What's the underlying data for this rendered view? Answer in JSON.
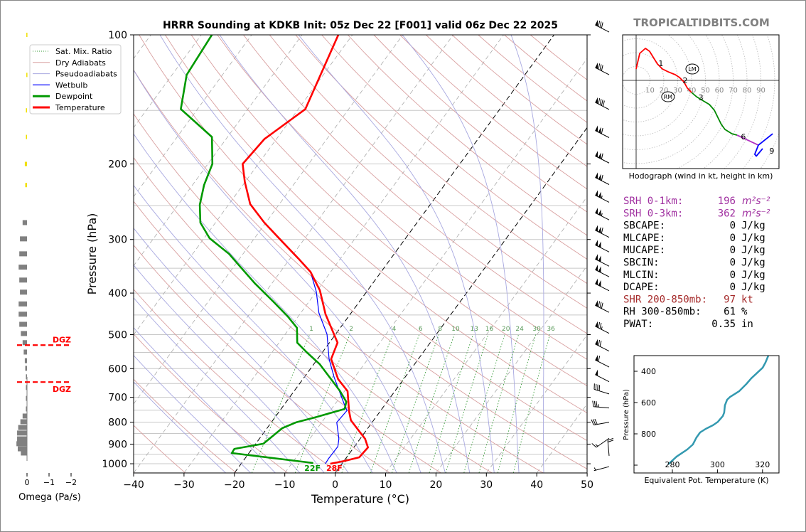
{
  "title": "HRRR Sounding at KDKB Init: 05z Dec 22 [F001] valid 06z Dec 22 2025",
  "watermark": "TROPICALTIDBITS.COM",
  "colors": {
    "temperature": "#ff0000",
    "dewpoint": "#009900",
    "wetbulb": "#0000ff",
    "dry_adiabat": "#d9a0a0",
    "pseudoadiabat": "#a8a8e0",
    "mixing_ratio": "#339933",
    "isotherm": "#aaaaaa",
    "srh": "#a030a0",
    "shr": "#a52a2a",
    "theta_e": "#3399b0",
    "omega_bar": "#808080",
    "omega_upper": "#f0e000",
    "watermark": "#808080"
  },
  "legend": [
    {
      "label": "Sat. Mix. Ratio",
      "style": "mixing"
    },
    {
      "label": "Dry Adiabats",
      "style": "dry"
    },
    {
      "label": "Pseudoadiabats",
      "style": "moist"
    },
    {
      "label": "Wetbulb",
      "style": "wetbulb"
    },
    {
      "label": "Dewpoint",
      "style": "dewpoint"
    },
    {
      "label": "Temperature",
      "style": "temperature"
    }
  ],
  "chart_data": [
    {
      "type": "line",
      "name": "skew-t",
      "xlabel": "Temperature (°C)",
      "ylabel": "Pressure (hPa)",
      "xlim": [
        -40,
        50
      ],
      "ylim": [
        1050,
        100
      ],
      "x_ticks": [
        "−40",
        "−30",
        "−20",
        "−10",
        "0",
        "10",
        "20",
        "30",
        "40",
        "50"
      ],
      "x_tick_values": [
        -40,
        -30,
        -20,
        -10,
        0,
        10,
        20,
        30,
        40,
        50
      ],
      "y_ticks": [
        "100",
        "200",
        "300",
        "400",
        "500",
        "600",
        "700",
        "800",
        "900",
        "1000"
      ],
      "y_tick_values": [
        100,
        200,
        300,
        400,
        500,
        600,
        700,
        800,
        900,
        1000
      ],
      "skew_note": "skewed isotherms",
      "surface_labels": {
        "dewpoint": "22F",
        "temperature": "28F"
      },
      "mixing_ratio_labels": [
        "1",
        "2",
        "4",
        "6",
        "8",
        "10",
        "13",
        "16",
        "20",
        "24",
        "30",
        "36"
      ],
      "mixing_ratio_values": [
        1,
        2,
        4,
        6,
        8,
        10,
        13,
        16,
        20,
        24,
        30,
        36
      ],
      "series": [
        {
          "name": "Temperature",
          "points": [
            [
              100,
              -62.8
            ],
            [
              149,
              -58.6
            ],
            [
              175,
              -62.4
            ],
            [
              200,
              -63.1
            ],
            [
              220,
              -60.1
            ],
            [
              248,
              -55.8
            ],
            [
              274,
              -50.3
            ],
            [
              304,
              -43.9
            ],
            [
              332,
              -38.4
            ],
            [
              357,
              -34.0
            ],
            [
              394,
              -29.5
            ],
            [
              448,
              -24.9
            ],
            [
              522,
              -18.4
            ],
            [
              570,
              -17.3
            ],
            [
              635,
              -13.0
            ],
            [
              677,
              -9.4
            ],
            [
              754,
              -6.2
            ],
            [
              792,
              -4.5
            ],
            [
              875,
              1.0
            ],
            [
              916,
              2.8
            ],
            [
              966,
              2.5
            ],
            [
              985,
              0.1
            ],
            [
              1000,
              -2.3
            ]
          ]
        },
        {
          "name": "Dewpoint",
          "points": [
            [
              100,
              -87.9
            ],
            [
              124,
              -87.1
            ],
            [
              149,
              -83.3
            ],
            [
              173,
              -73.1
            ],
            [
              200,
              -69.1
            ],
            [
              224,
              -67.7
            ],
            [
              249,
              -65.7
            ],
            [
              274,
              -63.0
            ],
            [
              298,
              -58.9
            ],
            [
              324,
              -52.8
            ],
            [
              379,
              -43.5
            ],
            [
              420,
              -36.9
            ],
            [
              454,
              -32.0
            ],
            [
              482,
              -28.6
            ],
            [
              522,
              -26.4
            ],
            [
              549,
              -23.2
            ],
            [
              586,
              -18.8
            ],
            [
              635,
              -14.4
            ],
            [
              677,
              -10.9
            ],
            [
              717,
              -8.1
            ],
            [
              745,
              -7.4
            ],
            [
              780,
              -12.1
            ],
            [
              801,
              -15.1
            ],
            [
              826,
              -17.0
            ],
            [
              898,
              -18.5
            ],
            [
              923,
              -23.5
            ],
            [
              944,
              -23.4
            ],
            [
              996,
              -5.8
            ]
          ]
        },
        {
          "name": "Wetbulb",
          "points": [
            [
              100,
              -62.8
            ],
            [
              149,
              -58.6
            ],
            [
              175,
              -62.4
            ],
            [
              200,
              -63.1
            ],
            [
              220,
              -60.1
            ],
            [
              248,
              -55.8
            ],
            [
              274,
              -50.3
            ],
            [
              304,
              -43.9
            ],
            [
              332,
              -38.4
            ],
            [
              357,
              -34.0
            ],
            [
              397,
              -30.0
            ],
            [
              445,
              -26.4
            ],
            [
              499,
              -21.7
            ],
            [
              570,
              -17.7
            ],
            [
              628,
              -14.1
            ],
            [
              731,
              -7.9
            ],
            [
              751,
              -6.7
            ],
            [
              801,
              -7.0
            ],
            [
              875,
              -4.2
            ],
            [
              912,
              -3.3
            ],
            [
              973,
              -3.4
            ],
            [
              1000,
              -3.3
            ]
          ]
        }
      ],
      "highlight_isotherms": [
        0,
        -20
      ],
      "wind_barbs": [
        {
          "p": 97,
          "dir": 297,
          "kt": 80
        },
        {
          "p": 122,
          "dir": 297,
          "kt": 80
        },
        {
          "p": 147,
          "dir": 297,
          "kt": 90
        },
        {
          "p": 171,
          "dir": 297,
          "kt": 110
        },
        {
          "p": 196,
          "dir": 297,
          "kt": 110
        },
        {
          "p": 220,
          "dir": 297,
          "kt": 110
        },
        {
          "p": 242,
          "dir": 297,
          "kt": 105
        },
        {
          "p": 266,
          "dir": 297,
          "kt": 105
        },
        {
          "p": 292,
          "dir": 297,
          "kt": 110
        },
        {
          "p": 316,
          "dir": 297,
          "kt": 100
        },
        {
          "p": 341,
          "dir": 297,
          "kt": 100
        },
        {
          "p": 361,
          "dir": 297,
          "kt": 100
        },
        {
          "p": 389,
          "dir": 297,
          "kt": 100
        },
        {
          "p": 437,
          "dir": 297,
          "kt": 80
        },
        {
          "p": 489,
          "dir": 297,
          "kt": 75
        },
        {
          "p": 538,
          "dir": 297,
          "kt": 70
        },
        {
          "p": 586,
          "dir": 297,
          "kt": 60
        },
        {
          "p": 634,
          "dir": 297,
          "kt": 50
        },
        {
          "p": 677,
          "dir": 287,
          "kt": 40
        },
        {
          "p": 730,
          "dir": 275,
          "kt": 35
        },
        {
          "p": 788,
          "dir": 260,
          "kt": 30
        },
        {
          "p": 859,
          "dir": 235,
          "kt": 15
        },
        {
          "p": 944,
          "dir": 355,
          "kt": 20
        },
        {
          "p": 1000,
          "dir": 255,
          "kt": 5
        }
      ]
    },
    {
      "type": "line",
      "name": "hodograph",
      "title": "Hodograph (wind in kt, height in km)",
      "ring_labels": [
        "10",
        "20",
        "30",
        "40",
        "50",
        "60",
        "70",
        "80",
        "90"
      ],
      "ring_values": [
        10,
        20,
        30,
        40,
        50,
        60,
        70,
        80,
        90
      ],
      "segments": [
        {
          "name": "0-3km",
          "color": "#ff0000",
          "uv": [
            [
              0,
              8.2
            ],
            [
              2.6,
              19.5
            ],
            [
              6.7,
              23.1
            ],
            [
              9.7,
              21
            ],
            [
              12.8,
              15.9
            ],
            [
              15.4,
              11.8
            ],
            [
              19,
              8.2
            ],
            [
              23.1,
              6.2
            ],
            [
              28.2,
              4.1
            ],
            [
              31.3,
              2.1
            ],
            [
              34.4,
              -1
            ],
            [
              37,
              -5.6
            ],
            [
              40,
              -8.7
            ]
          ]
        },
        {
          "name": "3-6km",
          "color": "#008800",
          "uv": [
            [
              40,
              -8.7
            ],
            [
              43.6,
              -11.8
            ],
            [
              48.7,
              -14.9
            ],
            [
              52.8,
              -17.4
            ],
            [
              56.4,
              -21.5
            ],
            [
              59,
              -26.7
            ],
            [
              61.5,
              -31.8
            ],
            [
              64.1,
              -35.4
            ],
            [
              69.2,
              -38.5
            ],
            [
              72.8,
              -39.5
            ]
          ]
        },
        {
          "name": "6-9km",
          "color": "#b030c0",
          "uv": [
            [
              72.8,
              -39.5
            ],
            [
              79.5,
              -42.6
            ],
            [
              88.2,
              -46.7
            ]
          ]
        },
        {
          "name": "9km+",
          "color": "#0000ff",
          "uv": [
            [
              98.5,
              -38.5
            ],
            [
              88.2,
              -46.7
            ],
            [
              85.6,
              -53.3
            ],
            [
              86.7,
              -54.6
            ],
            [
              91.3,
              -49.2
            ]
          ]
        }
      ],
      "height_labels": [
        {
          "label": "1",
          "uv": [
            13.8,
            14.4
          ]
        },
        {
          "label": "2",
          "uv": [
            31.3,
            2.1
          ]
        },
        {
          "label": "3",
          "uv": [
            42.6,
            -10.3
          ]
        },
        {
          "label": "6",
          "uv": [
            73.3,
            -38.5
          ]
        },
        {
          "label": "9",
          "uv": [
            93.8,
            -48.7
          ]
        }
      ],
      "storm_motion": [
        {
          "label": "LM",
          "uv": [
            40.5,
            8.2
          ]
        },
        {
          "label": "RM",
          "uv": [
            23,
            -11.8
          ]
        }
      ]
    },
    {
      "type": "line",
      "name": "theta-e",
      "xlabel": "Equivalent Pot. Temperature (K)",
      "ylabel": "Pressure (hPa)",
      "xlim": [
        266,
        330
      ],
      "ylim": [
        1050,
        300
      ],
      "x_ticks": [
        "280",
        "300",
        "320"
      ],
      "x_tick_values": [
        280,
        300,
        320
      ],
      "y_ticks": [
        "400",
        "600",
        "800"
      ],
      "y_tick_values": [
        400,
        600,
        800
      ],
      "points": [
        [
          995,
          278.1
        ],
        [
          945,
          281.9
        ],
        [
          900,
          286.6
        ],
        [
          868,
          289.1
        ],
        [
          823,
          290.7
        ],
        [
          791,
          292.3
        ],
        [
          768,
          294.8
        ],
        [
          745,
          298.0
        ],
        [
          723,
          300.2
        ],
        [
          686,
          302.4
        ],
        [
          664,
          303.0
        ],
        [
          618,
          303.3
        ],
        [
          582,
          304.3
        ],
        [
          564,
          305.6
        ],
        [
          527,
          309.7
        ],
        [
          482,
          312.8
        ],
        [
          445,
          315.0
        ],
        [
          377,
          320.1
        ],
        [
          345,
          321.3
        ],
        [
          300,
          322.6
        ]
      ]
    },
    {
      "type": "bar",
      "name": "omega",
      "xlabel": "Omega (Pa/s)",
      "x_ticks": [
        "0",
        "−1",
        "−2"
      ],
      "x_tick_values": [
        0,
        -1,
        -2
      ],
      "dgz_label": "DGZ",
      "dgz_pressures": [
        529,
        645
      ],
      "upper_bars": [
        [
          100,
          0.03
        ],
        [
          124,
          0.03
        ],
        [
          150,
          0.05
        ],
        [
          173,
          0.05
        ],
        [
          200,
          0.1
        ],
        [
          224,
          0.08
        ]
      ],
      "bars": [
        [
          274,
          0.2
        ],
        [
          299,
          0.32
        ],
        [
          324,
          0.35
        ],
        [
          348,
          0.38
        ],
        [
          373,
          0.35
        ],
        [
          398,
          0.32
        ],
        [
          424,
          0.38
        ],
        [
          448,
          0.38
        ],
        [
          473,
          0.35
        ],
        [
          497,
          0.28
        ],
        [
          522,
          0.2
        ],
        [
          549,
          0.15
        ],
        [
          575,
          0.1
        ],
        [
          599,
          0.08
        ],
        [
          627,
          0.05
        ],
        [
          664,
          0.05
        ],
        [
          704,
          0.05
        ],
        [
          745,
          0.05
        ],
        [
          774,
          0.2
        ],
        [
          798,
          0.3
        ],
        [
          823,
          0.4
        ],
        [
          848,
          0.45
        ],
        [
          875,
          0.45
        ],
        [
          898,
          0.48
        ],
        [
          923,
          0.42
        ],
        [
          944,
          0.28
        ]
      ]
    }
  ],
  "stats": [
    {
      "label": "SRH 0-1km:",
      "value": "196",
      "unit": "m²s⁻²",
      "color": "srh"
    },
    {
      "label": "SRH 0-3km:",
      "value": "362",
      "unit": "m²s⁻²",
      "color": "srh"
    },
    {
      "label": "SBCAPE:",
      "value": "0",
      "unit": "J/kg",
      "color": "text"
    },
    {
      "label": "MLCAPE:",
      "value": "0",
      "unit": "J/kg",
      "color": "text"
    },
    {
      "label": "MUCAPE:",
      "value": "0",
      "unit": "J/kg",
      "color": "text"
    },
    {
      "label": "SBCIN:",
      "value": "0",
      "unit": "J/kg",
      "color": "text"
    },
    {
      "label": "MLCIN:",
      "value": "0",
      "unit": "J/kg",
      "color": "text"
    },
    {
      "label": "DCAPE:",
      "value": "0",
      "unit": "J/kg",
      "color": "text"
    },
    {
      "label": "SHR 200-850mb:",
      "value": "97",
      "unit": "kt",
      "color": "shr"
    },
    {
      "label": "RH 300-850mb:",
      "value": "61",
      "unit": "%",
      "color": "text"
    },
    {
      "label": "PWAT:",
      "value": "0.35",
      "unit": "in",
      "color": "text"
    }
  ]
}
